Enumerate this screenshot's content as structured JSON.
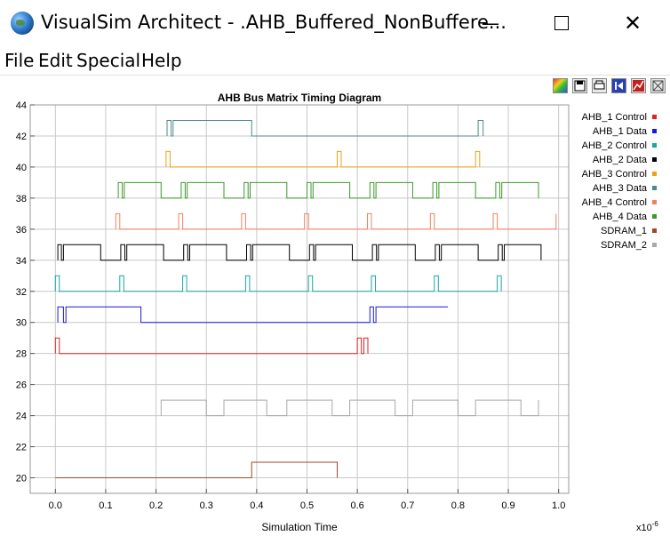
{
  "window": {
    "title": "VisualSim Architect - .AHB_Buffered_NonBuffere...",
    "minimize_glyph": "—",
    "close_glyph": "✕"
  },
  "menu": [
    "File",
    "Edit",
    "Special",
    "Help"
  ],
  "toolbar": {
    "icons": [
      "fill-color-icon",
      "save-icon",
      "print-icon",
      "reset-axes-icon",
      "format-icon",
      "fit-icon"
    ]
  },
  "chart_data": {
    "type": "line",
    "title": "AHB Bus Matrix Timing Diagram",
    "xlabel": "Simulation Time",
    "x_multiplier_label": "x10",
    "x_multiplier_exp": "-6",
    "xlim": [
      -0.05,
      1.02
    ],
    "ylim": [
      19,
      44
    ],
    "xticks": [
      "0.0",
      "0.1",
      "0.2",
      "0.3",
      "0.4",
      "0.5",
      "0.6",
      "0.7",
      "0.8",
      "0.9",
      "1.0"
    ],
    "xtick_values": [
      0,
      0.1,
      0.2,
      0.3,
      0.4,
      0.5,
      0.6,
      0.7,
      0.8,
      0.9,
      1.0
    ],
    "yticks": [
      20,
      22,
      24,
      26,
      28,
      30,
      32,
      34,
      36,
      38,
      40,
      42,
      44
    ],
    "grid": true,
    "legend_position": "right",
    "series": [
      {
        "name": "AHB_1 Control",
        "color": "#e52121",
        "points": [
          [
            0.0,
            28
          ],
          [
            0.0,
            29
          ],
          [
            0.008,
            29
          ],
          [
            0.008,
            28
          ],
          [
            0.6,
            28
          ],
          [
            0.6,
            29
          ],
          [
            0.608,
            29
          ],
          [
            0.608,
            28
          ],
          [
            0.613,
            28
          ],
          [
            0.613,
            29
          ],
          [
            0.621,
            29
          ],
          [
            0.621,
            28
          ]
        ]
      },
      {
        "name": "AHB_1 Data",
        "color": "#1a1adb",
        "points": [
          [
            0.005,
            30
          ],
          [
            0.005,
            31
          ],
          [
            0.016,
            31
          ],
          [
            0.016,
            30
          ],
          [
            0.021,
            30
          ],
          [
            0.021,
            31
          ],
          [
            0.17,
            31
          ],
          [
            0.17,
            30
          ],
          [
            0.625,
            30
          ],
          [
            0.625,
            31
          ],
          [
            0.632,
            31
          ],
          [
            0.632,
            30
          ],
          [
            0.637,
            30
          ],
          [
            0.637,
            31
          ],
          [
            0.78,
            31
          ]
        ]
      },
      {
        "name": "AHB_2 Control",
        "color": "#1aa6a6",
        "points": [
          [
            0.0,
            32
          ],
          [
            0.0,
            33
          ],
          [
            0.008,
            33
          ],
          [
            0.008,
            32
          ],
          [
            0.128,
            32
          ],
          [
            0.128,
            33
          ],
          [
            0.136,
            33
          ],
          [
            0.136,
            32
          ],
          [
            0.253,
            32
          ],
          [
            0.253,
            33
          ],
          [
            0.261,
            33
          ],
          [
            0.261,
            32
          ],
          [
            0.378,
            32
          ],
          [
            0.378,
            33
          ],
          [
            0.386,
            33
          ],
          [
            0.386,
            32
          ],
          [
            0.503,
            32
          ],
          [
            0.503,
            33
          ],
          [
            0.511,
            33
          ],
          [
            0.511,
            32
          ],
          [
            0.628,
            32
          ],
          [
            0.628,
            33
          ],
          [
            0.636,
            33
          ],
          [
            0.636,
            32
          ],
          [
            0.753,
            32
          ],
          [
            0.753,
            33
          ],
          [
            0.761,
            33
          ],
          [
            0.761,
            32
          ],
          [
            0.878,
            32
          ],
          [
            0.878,
            33
          ],
          [
            0.886,
            33
          ],
          [
            0.886,
            32
          ]
        ]
      },
      {
        "name": "AHB_2 Data",
        "color": "#000000",
        "points": [
          [
            0.005,
            34
          ],
          [
            0.005,
            35
          ],
          [
            0.012,
            35
          ],
          [
            0.012,
            34
          ],
          [
            0.016,
            34
          ],
          [
            0.016,
            35
          ],
          [
            0.09,
            35
          ],
          [
            0.09,
            34
          ],
          [
            0.13,
            34
          ],
          [
            0.13,
            35
          ],
          [
            0.138,
            35
          ],
          [
            0.138,
            34
          ],
          [
            0.142,
            34
          ],
          [
            0.142,
            35
          ],
          [
            0.215,
            35
          ],
          [
            0.215,
            34
          ],
          [
            0.255,
            34
          ],
          [
            0.255,
            35
          ],
          [
            0.263,
            35
          ],
          [
            0.263,
            34
          ],
          [
            0.267,
            34
          ],
          [
            0.267,
            35
          ],
          [
            0.34,
            35
          ],
          [
            0.34,
            34
          ],
          [
            0.38,
            34
          ],
          [
            0.38,
            35
          ],
          [
            0.388,
            35
          ],
          [
            0.388,
            34
          ],
          [
            0.392,
            34
          ],
          [
            0.392,
            35
          ],
          [
            0.465,
            35
          ],
          [
            0.465,
            34
          ],
          [
            0.505,
            34
          ],
          [
            0.505,
            35
          ],
          [
            0.513,
            35
          ],
          [
            0.513,
            34
          ],
          [
            0.517,
            34
          ],
          [
            0.517,
            35
          ],
          [
            0.59,
            35
          ],
          [
            0.59,
            34
          ],
          [
            0.63,
            34
          ],
          [
            0.63,
            35
          ],
          [
            0.638,
            35
          ],
          [
            0.638,
            34
          ],
          [
            0.642,
            34
          ],
          [
            0.642,
            35
          ],
          [
            0.715,
            35
          ],
          [
            0.715,
            34
          ],
          [
            0.755,
            34
          ],
          [
            0.755,
            35
          ],
          [
            0.763,
            35
          ],
          [
            0.763,
            34
          ],
          [
            0.767,
            34
          ],
          [
            0.767,
            35
          ],
          [
            0.84,
            35
          ],
          [
            0.84,
            34
          ],
          [
            0.88,
            34
          ],
          [
            0.88,
            35
          ],
          [
            0.888,
            35
          ],
          [
            0.888,
            34
          ],
          [
            0.892,
            34
          ],
          [
            0.892,
            35
          ],
          [
            0.965,
            35
          ],
          [
            0.965,
            34
          ]
        ]
      },
      {
        "name": "AHB_3 Control",
        "color": "#f0a010",
        "points": [
          [
            0.22,
            40
          ],
          [
            0.22,
            41
          ],
          [
            0.228,
            41
          ],
          [
            0.228,
            40
          ],
          [
            0.56,
            40
          ],
          [
            0.56,
            41
          ],
          [
            0.568,
            41
          ],
          [
            0.568,
            40
          ],
          [
            0.835,
            40
          ],
          [
            0.835,
            41
          ],
          [
            0.843,
            41
          ],
          [
            0.843,
            40
          ]
        ]
      },
      {
        "name": "AHB_3 Data",
        "color": "#4d8a8a",
        "points": [
          [
            0.222,
            42
          ],
          [
            0.222,
            43
          ],
          [
            0.23,
            43
          ],
          [
            0.23,
            42
          ],
          [
            0.234,
            42
          ],
          [
            0.234,
            43
          ],
          [
            0.39,
            43
          ],
          [
            0.39,
            42
          ],
          [
            0.84,
            42
          ],
          [
            0.84,
            43
          ],
          [
            0.85,
            43
          ],
          [
            0.85,
            42
          ]
        ]
      },
      {
        "name": "AHB_4 Control",
        "color": "#f08060",
        "points": [
          [
            0.12,
            36
          ],
          [
            0.12,
            37
          ],
          [
            0.128,
            37
          ],
          [
            0.128,
            36
          ],
          [
            0.245,
            36
          ],
          [
            0.245,
            37
          ],
          [
            0.253,
            37
          ],
          [
            0.253,
            36
          ],
          [
            0.37,
            36
          ],
          [
            0.37,
            37
          ],
          [
            0.378,
            37
          ],
          [
            0.378,
            36
          ],
          [
            0.495,
            36
          ],
          [
            0.495,
            37
          ],
          [
            0.503,
            37
          ],
          [
            0.503,
            36
          ],
          [
            0.62,
            36
          ],
          [
            0.62,
            37
          ],
          [
            0.628,
            37
          ],
          [
            0.628,
            36
          ],
          [
            0.745,
            36
          ],
          [
            0.745,
            37
          ],
          [
            0.753,
            37
          ],
          [
            0.753,
            36
          ],
          [
            0.87,
            36
          ],
          [
            0.87,
            37
          ],
          [
            0.878,
            37
          ],
          [
            0.878,
            36
          ],
          [
            0.995,
            36
          ],
          [
            0.995,
            37
          ]
        ]
      },
      {
        "name": "AHB_4 Data",
        "color": "#3a9a2a",
        "points": [
          [
            0.125,
            38
          ],
          [
            0.125,
            39
          ],
          [
            0.133,
            39
          ],
          [
            0.133,
            38
          ],
          [
            0.137,
            38
          ],
          [
            0.137,
            39
          ],
          [
            0.21,
            39
          ],
          [
            0.21,
            38
          ],
          [
            0.25,
            38
          ],
          [
            0.25,
            39
          ],
          [
            0.258,
            39
          ],
          [
            0.258,
            38
          ],
          [
            0.262,
            38
          ],
          [
            0.262,
            39
          ],
          [
            0.335,
            39
          ],
          [
            0.335,
            38
          ],
          [
            0.375,
            38
          ],
          [
            0.375,
            39
          ],
          [
            0.383,
            39
          ],
          [
            0.383,
            38
          ],
          [
            0.387,
            38
          ],
          [
            0.387,
            39
          ],
          [
            0.46,
            39
          ],
          [
            0.46,
            38
          ],
          [
            0.5,
            38
          ],
          [
            0.5,
            39
          ],
          [
            0.508,
            39
          ],
          [
            0.508,
            38
          ],
          [
            0.512,
            38
          ],
          [
            0.512,
            39
          ],
          [
            0.585,
            39
          ],
          [
            0.585,
            38
          ],
          [
            0.625,
            38
          ],
          [
            0.625,
            39
          ],
          [
            0.633,
            39
          ],
          [
            0.633,
            38
          ],
          [
            0.637,
            38
          ],
          [
            0.637,
            39
          ],
          [
            0.71,
            39
          ],
          [
            0.71,
            38
          ],
          [
            0.75,
            38
          ],
          [
            0.75,
            39
          ],
          [
            0.758,
            39
          ],
          [
            0.758,
            38
          ],
          [
            0.762,
            38
          ],
          [
            0.762,
            39
          ],
          [
            0.835,
            39
          ],
          [
            0.835,
            38
          ],
          [
            0.875,
            38
          ],
          [
            0.875,
            39
          ],
          [
            0.883,
            39
          ],
          [
            0.883,
            38
          ],
          [
            0.887,
            38
          ],
          [
            0.887,
            39
          ],
          [
            0.96,
            39
          ],
          [
            0.96,
            38
          ]
        ]
      },
      {
        "name": "SDRAM_1",
        "color": "#a0482a",
        "points": [
          [
            0.0,
            20
          ],
          [
            0.39,
            20
          ],
          [
            0.39,
            21
          ],
          [
            0.56,
            21
          ],
          [
            0.56,
            20
          ]
        ]
      },
      {
        "name": "SDRAM_2",
        "color": "#a8a8a8",
        "points": [
          [
            0.21,
            24
          ],
          [
            0.21,
            25
          ],
          [
            0.3,
            25
          ],
          [
            0.3,
            24
          ],
          [
            0.335,
            24
          ],
          [
            0.335,
            25
          ],
          [
            0.42,
            25
          ],
          [
            0.42,
            24
          ],
          [
            0.46,
            24
          ],
          [
            0.46,
            25
          ],
          [
            0.55,
            25
          ],
          [
            0.55,
            24
          ],
          [
            0.585,
            24
          ],
          [
            0.585,
            25
          ],
          [
            0.675,
            25
          ],
          [
            0.675,
            24
          ],
          [
            0.71,
            24
          ],
          [
            0.71,
            25
          ],
          [
            0.8,
            25
          ],
          [
            0.8,
            24
          ],
          [
            0.835,
            24
          ],
          [
            0.835,
            25
          ],
          [
            0.925,
            25
          ],
          [
            0.925,
            24
          ],
          [
            0.96,
            24
          ],
          [
            0.96,
            25
          ]
        ]
      }
    ]
  }
}
